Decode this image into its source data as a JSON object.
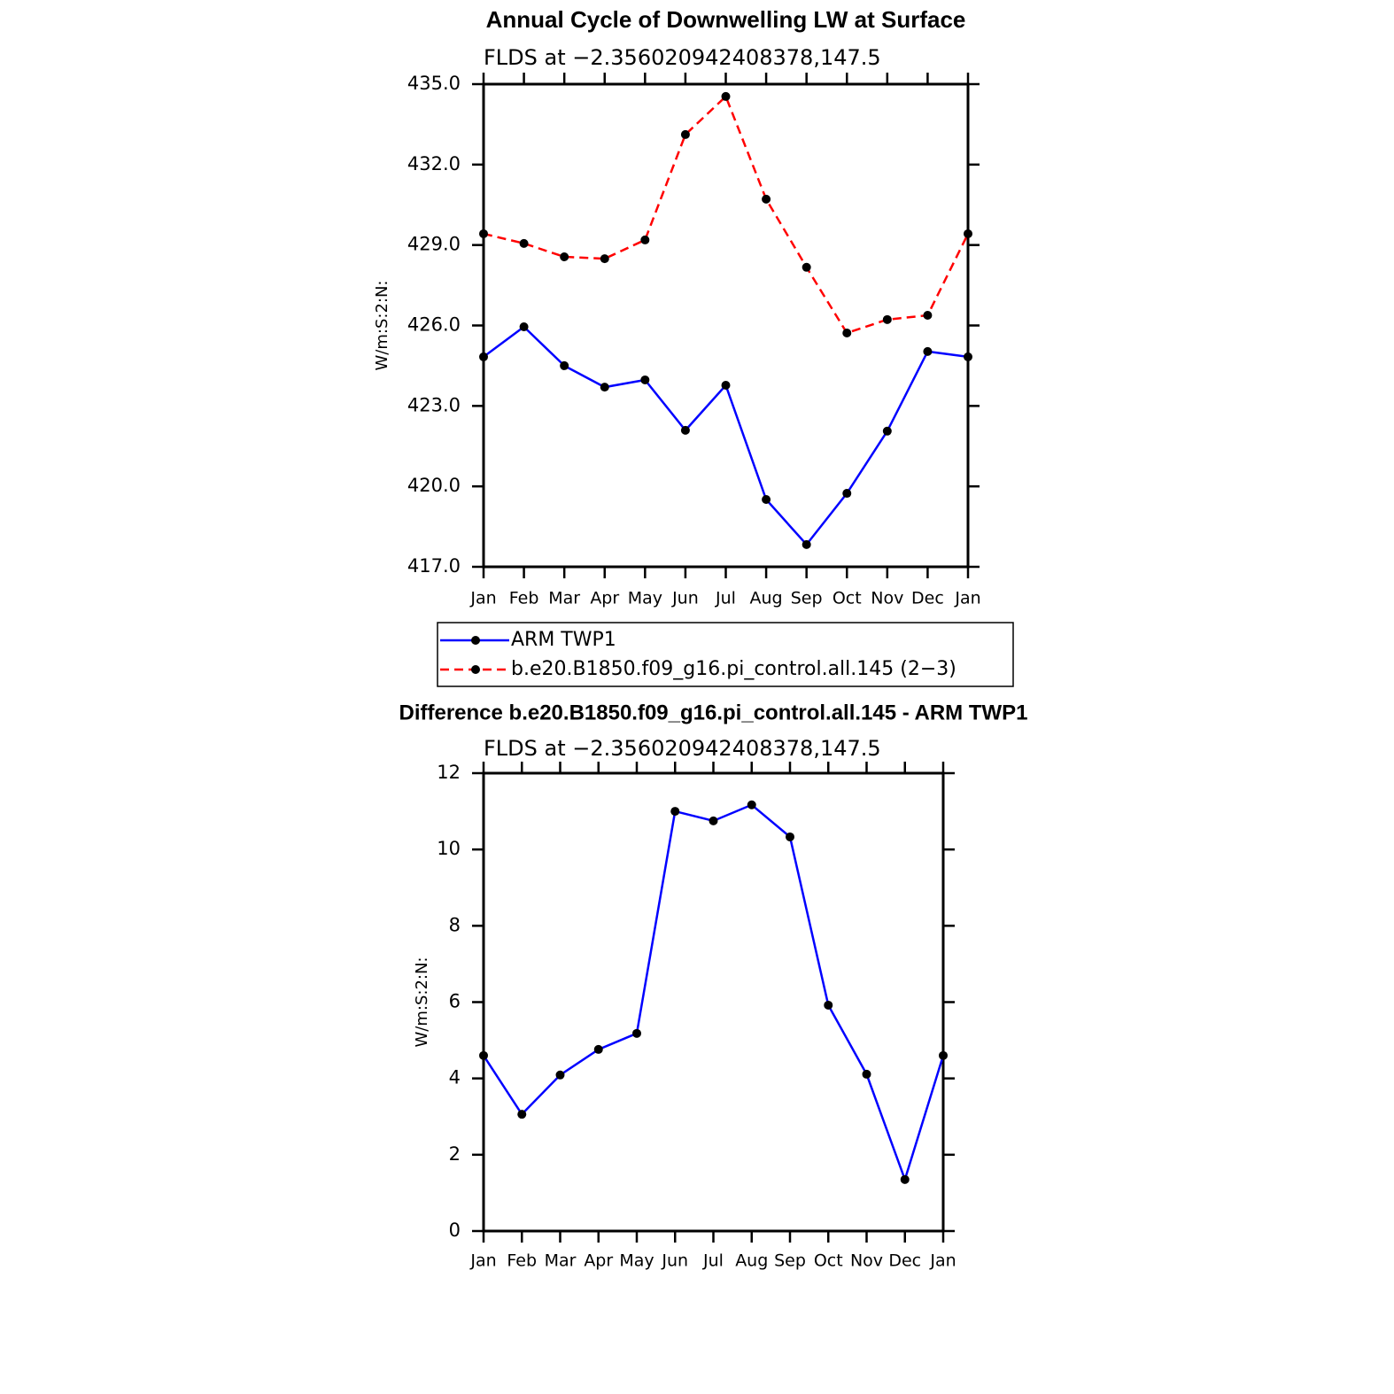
{
  "chart_data": [
    {
      "type": "line",
      "title": "Annual Cycle of Downwelling LW at Surface",
      "subtitle": "FLDS at −2.356020942408378,147.5",
      "y_label": "W/m:S:2:N:",
      "categories": [
        "Jan",
        "Feb",
        "Mar",
        "Apr",
        "May",
        "Jun",
        "Jul",
        "Aug",
        "Sep",
        "Oct",
        "Nov",
        "Dec",
        "Jan"
      ],
      "series": [
        {
          "name": "ARM TWP1",
          "color": "#0000ff",
          "line_style": "solid",
          "values": [
            424.83,
            425.95,
            424.5,
            423.7,
            423.97,
            422.09,
            423.77,
            419.51,
            417.83,
            419.74,
            422.06,
            425.03,
            424.83
          ]
        },
        {
          "name": "b.e20.B1850.f09_g16.pi_control.all.145 (2−3)",
          "color": "#ff0000",
          "line_style": "dashed",
          "values": [
            429.42,
            429.06,
            428.56,
            428.49,
            429.19,
            433.12,
            434.54,
            430.71,
            428.17,
            425.72,
            426.22,
            426.38,
            429.42
          ]
        }
      ],
      "ylim": [
        417,
        435
      ],
      "yticks": [
        {
          "value": 417,
          "label": "417.0"
        },
        {
          "value": 420,
          "label": "420.0"
        },
        {
          "value": 423,
          "label": "423.0"
        },
        {
          "value": 426,
          "label": "426.0"
        },
        {
          "value": 429,
          "label": "429.0"
        },
        {
          "value": 432,
          "label": "432.0"
        },
        {
          "value": 435,
          "label": "435.0"
        }
      ],
      "marker_color": "#000000",
      "legend": "below"
    },
    {
      "type": "line",
      "title": "Difference b.e20.B1850.f09_g16.pi_control.all.145 - ARM TWP1",
      "subtitle": "FLDS at −2.356020942408378,147.5",
      "y_label": "W/m:S:2:N:",
      "categories": [
        "Jan",
        "Feb",
        "Mar",
        "Apr",
        "May",
        "Jun",
        "Jul",
        "Aug",
        "Sep",
        "Oct",
        "Nov",
        "Dec",
        "Jan"
      ],
      "values": [
        4.6,
        3.06,
        4.09,
        4.76,
        5.18,
        11.0,
        10.75,
        11.17,
        10.33,
        5.92,
        4.11,
        1.35,
        4.6
      ],
      "color": "#0000ff",
      "ylim": [
        0,
        12
      ],
      "yticks": [
        0,
        2,
        4,
        6,
        8,
        10,
        12
      ],
      "marker_color": "#000000"
    }
  ]
}
